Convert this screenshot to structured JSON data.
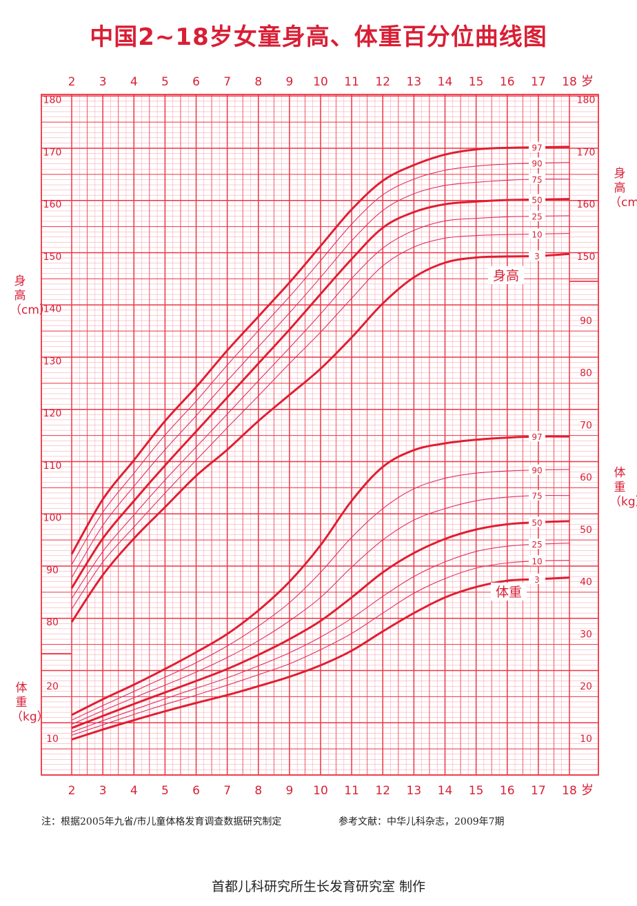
{
  "title": "中国2~18岁女童身高、体重百分位曲线图",
  "side_labels": {
    "left_height": "身高（cm）",
    "left_weight": "体重（kg）",
    "right_height": "身高（cm）",
    "right_weight": "体重（kg）"
  },
  "note_left": "注：根据2005年九省/市儿童体格发育调查数据研究制定",
  "note_right": "参考文献：中华儿科杂志，2009年7期",
  "footer": "首都儿科研究所生长发育研究室 制作",
  "colors": {
    "grid": "#ee3344",
    "minor": "#f59aa6",
    "curve": "#e01e32",
    "thin": "#dd3060",
    "text": "#d81f35"
  },
  "chart_data": {
    "type": "line",
    "x_label": "岁",
    "x_ticks": [
      2,
      3,
      4,
      5,
      6,
      7,
      8,
      9,
      10,
      11,
      12,
      13,
      14,
      15,
      16,
      17,
      18
    ],
    "xlim": [
      2,
      18
    ],
    "height": {
      "label": "身高",
      "ylim": [
        76,
        180
      ],
      "ticks": [
        80,
        90,
        100,
        110,
        120,
        130,
        140,
        150,
        160,
        170,
        180
      ],
      "series": [
        {
          "name": "97",
          "x": [
            2,
            3,
            4,
            5,
            6,
            7,
            8,
            9,
            10,
            11,
            12,
            13,
            14,
            15,
            16,
            17,
            18
          ],
          "values": [
            93,
            103.5,
            111,
            118.5,
            125,
            132,
            138.5,
            145,
            152,
            159,
            164.5,
            167.5,
            169.5,
            170.5,
            170.8,
            170.9,
            171
          ]
        },
        {
          "name": "90",
          "x": [
            2,
            3,
            4,
            5,
            6,
            7,
            8,
            9,
            10,
            11,
            12,
            13,
            14,
            15,
            16,
            17,
            18
          ],
          "values": [
            91,
            101,
            108.5,
            115.8,
            122.3,
            129.2,
            135.8,
            142.3,
            149.2,
            156.2,
            161.8,
            164.8,
            166.5,
            167.3,
            167.7,
            167.9,
            168
          ]
        },
        {
          "name": "75",
          "x": [
            2,
            3,
            4,
            5,
            6,
            7,
            8,
            9,
            10,
            11,
            12,
            13,
            14,
            15,
            16,
            17,
            18
          ],
          "values": [
            88.5,
            98.5,
            106,
            113,
            119.5,
            126.2,
            132.7,
            139.2,
            146,
            153,
            158.8,
            162,
            163.6,
            164.2,
            164.6,
            164.8,
            164.8
          ]
        },
        {
          "name": "50",
          "x": [
            2,
            3,
            4,
            5,
            6,
            7,
            8,
            9,
            10,
            11,
            12,
            13,
            14,
            15,
            16,
            17,
            18
          ],
          "values": [
            86.5,
            96,
            103.2,
            110,
            116.5,
            123,
            129.5,
            136,
            142.8,
            149.5,
            155.5,
            158.5,
            160,
            160.5,
            160.8,
            160.9,
            161
          ]
        },
        {
          "name": "25",
          "x": [
            2,
            3,
            4,
            5,
            6,
            7,
            8,
            9,
            10,
            11,
            12,
            13,
            14,
            15,
            16,
            17,
            18
          ],
          "values": [
            84.5,
            93.5,
            100.5,
            107.2,
            113.5,
            119.8,
            126.2,
            132.5,
            139,
            145.8,
            151.6,
            155,
            156.8,
            157.3,
            157.6,
            157.7,
            157.8
          ]
        },
        {
          "name": "10",
          "x": [
            2,
            3,
            4,
            5,
            6,
            7,
            8,
            9,
            10,
            11,
            12,
            13,
            14,
            15,
            16,
            17,
            18
          ],
          "values": [
            82.5,
            91.5,
            98.2,
            104.7,
            111,
            117.2,
            123.3,
            129.5,
            135.5,
            142,
            148.2,
            151.8,
            153.5,
            154,
            154.2,
            154.3,
            154.4
          ]
        },
        {
          "name": "3",
          "x": [
            2,
            3,
            4,
            5,
            6,
            7,
            8,
            9,
            10,
            11,
            12,
            13,
            14,
            15,
            16,
            17,
            18
          ],
          "values": [
            80,
            89,
            96,
            102,
            108,
            113,
            118.5,
            123.5,
            128.5,
            134.5,
            141,
            146,
            148.8,
            149.8,
            150,
            150.1,
            150.5
          ]
        }
      ]
    },
    "weight": {
      "label": "体重",
      "ylim": [
        3,
        96
      ],
      "ticks": [
        10,
        20,
        30,
        40,
        50,
        60,
        70,
        80,
        90
      ],
      "series": [
        {
          "name": "97",
          "x": [
            2,
            3,
            4,
            5,
            6,
            7,
            8,
            9,
            10,
            11,
            12,
            13,
            14,
            15,
            16,
            17,
            18
          ],
          "values": [
            14.5,
            17.5,
            20.3,
            23.3,
            26.5,
            30,
            34.5,
            40,
            47,
            55.5,
            62,
            65.2,
            66.5,
            67.2,
            67.6,
            67.8,
            67.8
          ]
        },
        {
          "name": "90",
          "x": [
            2,
            3,
            4,
            5,
            6,
            7,
            8,
            9,
            10,
            11,
            12,
            13,
            14,
            15,
            16,
            17,
            18
          ],
          "values": [
            13.5,
            16.3,
            19,
            21.7,
            24.5,
            27.7,
            31.5,
            36,
            41.8,
            48.5,
            54,
            57.8,
            59.8,
            60.8,
            61.2,
            61.4,
            61.5
          ]
        },
        {
          "name": "75",
          "x": [
            2,
            3,
            4,
            5,
            6,
            7,
            8,
            9,
            10,
            11,
            12,
            13,
            14,
            15,
            16,
            17,
            18
          ],
          "values": [
            12.7,
            15.3,
            17.8,
            20.2,
            22.7,
            25.5,
            28.7,
            32.5,
            37,
            42.8,
            48,
            51.8,
            54,
            55.5,
            56.2,
            56.5,
            56.5
          ]
        },
        {
          "name": "50",
          "x": [
            2,
            3,
            4,
            5,
            6,
            7,
            8,
            9,
            10,
            11,
            12,
            13,
            14,
            15,
            16,
            17,
            18
          ],
          "values": [
            12,
            14.3,
            16.6,
            18.8,
            21,
            23.3,
            26,
            29,
            32.5,
            37,
            41.8,
            45.5,
            48.2,
            50,
            51,
            51.4,
            51.6
          ]
        },
        {
          "name": "25",
          "x": [
            2,
            3,
            4,
            5,
            6,
            7,
            8,
            9,
            10,
            11,
            12,
            13,
            14,
            15,
            16,
            17,
            18
          ],
          "values": [
            11.2,
            13.4,
            15.5,
            17.6,
            19.6,
            21.6,
            23.9,
            26.4,
            29.4,
            33,
            37.2,
            41,
            43.8,
            45.8,
            46.8,
            47.2,
            47.4
          ]
        },
        {
          "name": "10",
          "x": [
            2,
            3,
            4,
            5,
            6,
            7,
            8,
            9,
            10,
            11,
            12,
            13,
            14,
            15,
            16,
            17,
            18
          ],
          "values": [
            10.6,
            12.6,
            14.6,
            16.5,
            18.3,
            20.2,
            22.2,
            24.3,
            27,
            30.1,
            34,
            37.8,
            40.6,
            42.6,
            43.6,
            44,
            44.1
          ]
        },
        {
          "name": "3",
          "x": [
            2,
            3,
            4,
            5,
            6,
            7,
            8,
            9,
            10,
            11,
            12,
            13,
            14,
            15,
            16,
            17,
            18
          ],
          "values": [
            9.8,
            11.7,
            13.5,
            15.2,
            16.8,
            18.3,
            20,
            21.8,
            24,
            26.8,
            30.5,
            34,
            37,
            39,
            40.2,
            40.5,
            40.8
          ]
        }
      ]
    }
  }
}
